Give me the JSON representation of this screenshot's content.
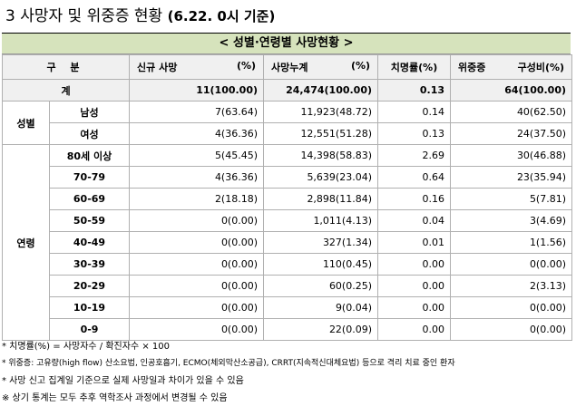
{
  "title": {
    "text": "3 사망자 및 위중증 현황",
    "date": "(6.22. 0시 기준)"
  },
  "banner": "< 성별·연령별 사망현황 >",
  "headers": {
    "category": "구 분",
    "new_deaths": "신규 사망",
    "new_deaths_pct": "(%)",
    "cum_deaths": "사망누계",
    "cum_deaths_pct": "(%)",
    "fatality_rate": "치명률(%)",
    "critical": "위중증",
    "critical_ratio": "구성비(%)"
  },
  "total": {
    "label": "계",
    "new": "11(100.00)",
    "cum": "24,474(100.00)",
    "rate": "0.13",
    "critical": "64(100.00)"
  },
  "sex": {
    "label": "성별",
    "rows": [
      {
        "label": "남성",
        "new": "7(63.64)",
        "cum": "11,923(48.72)",
        "rate": "0.14",
        "critical": "40(62.50)"
      },
      {
        "label": "여성",
        "new": "4(36.36)",
        "cum": "12,551(51.28)",
        "rate": "0.13",
        "critical": "24(37.50)"
      }
    ]
  },
  "age": {
    "label": "연령",
    "rows": [
      {
        "label": "80세 이상",
        "new": "5(45.45)",
        "cum": "14,398(58.83)",
        "rate": "2.69",
        "critical": "30(46.88)"
      },
      {
        "label": "70-79",
        "new": "4(36.36)",
        "cum": "5,639(23.04)",
        "rate": "0.64",
        "critical": "23(35.94)"
      },
      {
        "label": "60-69",
        "new": "2(18.18)",
        "cum": "2,898(11.84)",
        "rate": "0.16",
        "critical": "5(7.81)"
      },
      {
        "label": "50-59",
        "new": "0(0.00)",
        "cum": "1,011(4.13)",
        "rate": "0.04",
        "critical": "3(4.69)"
      },
      {
        "label": "40-49",
        "new": "0(0.00)",
        "cum": "327(1.34)",
        "rate": "0.01",
        "critical": "1(1.56)"
      },
      {
        "label": "30-39",
        "new": "0(0.00)",
        "cum": "110(0.45)",
        "rate": "0.00",
        "critical": "0(0.00)"
      },
      {
        "label": "20-29",
        "new": "0(0.00)",
        "cum": "60(0.25)",
        "rate": "0.00",
        "critical": "2(3.13)"
      },
      {
        "label": "10-19",
        "new": "0(0.00)",
        "cum": "9(0.04)",
        "rate": "0.00",
        "critical": "0(0.00)"
      },
      {
        "label": "0-9",
        "new": "0(0.00)",
        "cum": "22(0.09)",
        "rate": "0.00",
        "critical": "0(0.00)"
      }
    ]
  },
  "notes": [
    "* 치명률(%) = 사망자수 / 확진자수 × 100",
    "* 위중증: 고유량(high flow) 산소요법, 인공호흡기, ECMO(체외막산소공급), CRRT(지속적신대체요법) 등으로 격리 치료 중인 환자",
    "* 사망 신고 집계일 기준으로 실제 사망일과 차이가 있을 수 있음",
    "※ 상기 통계는 모두 추후 역학조사 과정에서 변경될 수 있음"
  ]
}
